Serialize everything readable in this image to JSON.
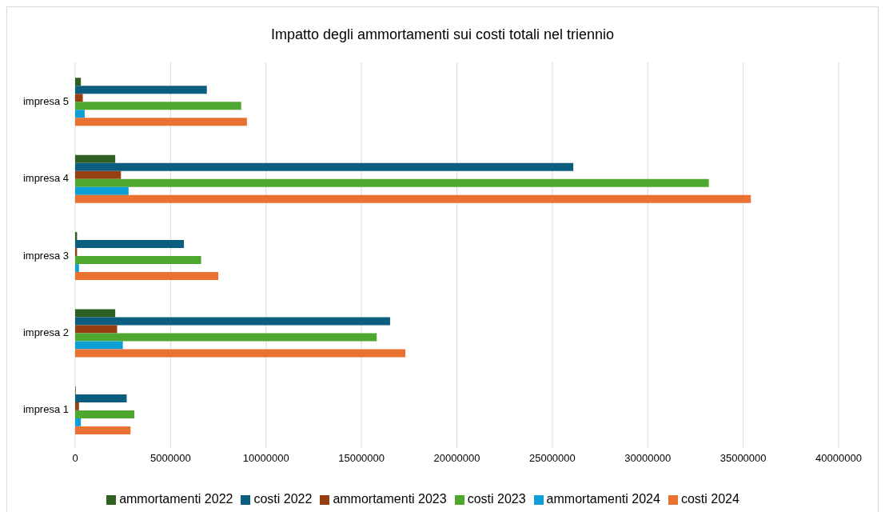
{
  "chart_data": {
    "type": "bar",
    "orientation": "horizontal",
    "title": "Impatto degli ammortamenti sui costi totali nel triennio",
    "categories": [
      "impresa 5",
      "impresa 4",
      "impresa 3",
      "impresa 2",
      "impresa 1"
    ],
    "series": [
      {
        "name": "ammortamenti 2022",
        "color": "#2e6121",
        "values": [
          300000,
          2100000,
          100000,
          2100000,
          30000
        ]
      },
      {
        "name": "costi 2022",
        "color": "#0b5e80",
        "values": [
          6900000,
          26100000,
          5700000,
          16500000,
          2700000
        ]
      },
      {
        "name": "ammortamenti 2023",
        "color": "#953f12",
        "values": [
          400000,
          2400000,
          100000,
          2200000,
          200000
        ]
      },
      {
        "name": "costi 2023",
        "color": "#4ea72e",
        "values": [
          8700000,
          33200000,
          6600000,
          15800000,
          3100000
        ]
      },
      {
        "name": "ammortamenti 2024",
        "color": "#0f9ed5",
        "values": [
          500000,
          2800000,
          200000,
          2500000,
          300000
        ]
      },
      {
        "name": "costi 2024",
        "color": "#e97132",
        "values": [
          9000000,
          35400000,
          7500000,
          17300000,
          2900000
        ]
      }
    ],
    "xlim": [
      0,
      40000000
    ],
    "xticks": [
      0,
      5000000,
      10000000,
      15000000,
      20000000,
      25000000,
      30000000,
      35000000,
      40000000
    ],
    "grid": "x",
    "legend": "bottom"
  }
}
